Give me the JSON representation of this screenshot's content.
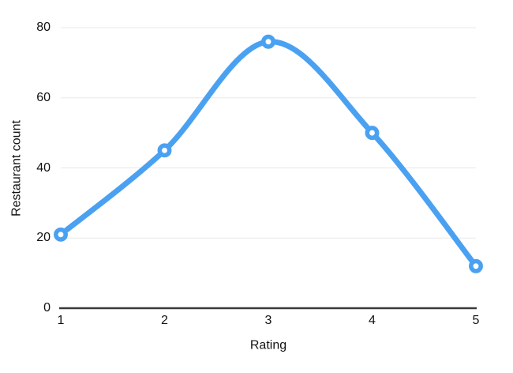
{
  "chart_data": {
    "type": "line",
    "x": [
      1,
      2,
      3,
      4,
      5
    ],
    "series": [
      {
        "name": "Restaurant count",
        "values": [
          21,
          45,
          76,
          50,
          12
        ]
      }
    ],
    "title": "",
    "xlabel": "Rating",
    "ylabel": "Restaurant count",
    "xticks": [
      "1",
      "2",
      "3",
      "4",
      "5"
    ],
    "yticks": [
      0,
      20,
      40,
      60,
      80
    ],
    "xlim": [
      1,
      5
    ],
    "ylim": [
      0,
      80
    ],
    "grid": true,
    "legend": false,
    "smooth": true,
    "marker": "open-circle"
  },
  "colors": {
    "line": "#4aa1f1",
    "marker_fill": "#ffffff",
    "grid": "#e8e8e8",
    "axis": "#3b3b3b",
    "text": "#111111",
    "background": "#ffffff"
  }
}
